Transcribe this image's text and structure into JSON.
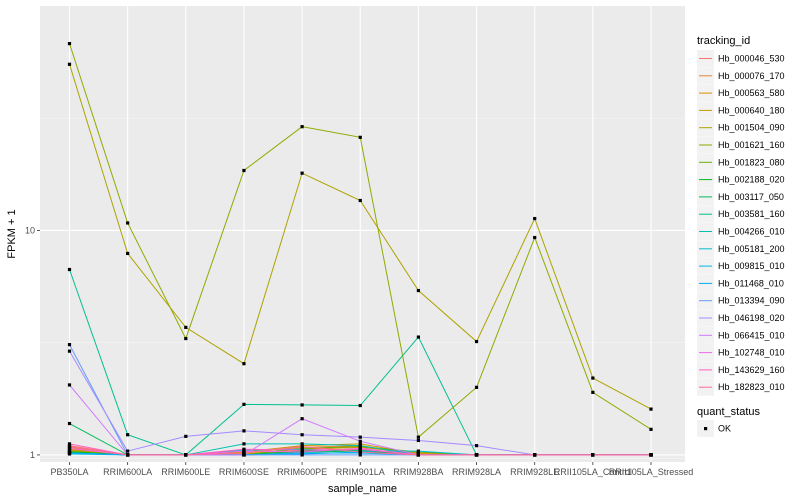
{
  "chart_data": {
    "type": "line",
    "ylabel": "FPKM + 1",
    "xlabel": "sample_name",
    "y_scale": "log10",
    "ylim": [
      0.93,
      100
    ],
    "y_ticks": [
      {
        "value": 1,
        "label": "1"
      },
      {
        "value": 10,
        "label": "10"
      }
    ],
    "grid": true,
    "legend_position": "right",
    "categories": [
      "PB350LA",
      "RRIM600LA",
      "RRIM600LE",
      "RRIM600SE",
      "RRIM600PE",
      "RRIM901LA",
      "RRIM928BA",
      "RRIM928LA",
      "RRIM928LE",
      "RRII105LA_Control",
      "RRII105LA_Stressed"
    ],
    "legend_color_title": "tracking_id",
    "legend_shape_title": "quant_status",
    "legend_shape_entries": [
      "OK"
    ],
    "series": [
      {
        "name": "Hb_000046_530",
        "color": "#F8766D",
        "values": [
          1.1,
          1.0,
          1.0,
          1.0,
          1.05,
          1.05,
          1.0,
          1.0,
          1.0,
          1.0,
          1.0
        ]
      },
      {
        "name": "Hb_000076_170",
        "color": "#EC8239",
        "values": [
          1.08,
          1.0,
          1.0,
          1.02,
          1.08,
          1.1,
          1.0,
          1.0,
          1.0,
          1.0,
          1.0
        ]
      },
      {
        "name": "Hb_000563_580",
        "color": "#DB8E00",
        "values": [
          1.06,
          1.0,
          1.0,
          1.01,
          1.06,
          1.08,
          1.02,
          1.0,
          1.0,
          1.0,
          1.0
        ]
      },
      {
        "name": "Hb_000640_180",
        "color": "#C79800",
        "values": [
          1.05,
          1.0,
          1.0,
          1.03,
          1.1,
          1.12,
          1.01,
          1.0,
          1.0,
          1.0,
          1.0
        ]
      },
      {
        "name": "Hb_001504_090",
        "color": "#AEA200",
        "values": [
          55,
          7.9,
          3.7,
          2.55,
          18,
          13.6,
          5.4,
          3.2,
          11.3,
          2.2,
          1.6
        ]
      },
      {
        "name": "Hb_001621_160",
        "color": "#8FAA00",
        "values": [
          68,
          10.8,
          3.3,
          18.5,
          29,
          26,
          1.2,
          2.0,
          9.3,
          1.9,
          1.3
        ]
      },
      {
        "name": "Hb_001823_080",
        "color": "#64B200",
        "values": [
          1.04,
          1.0,
          1.0,
          1.0,
          1.07,
          1.09,
          1.03,
          1.0,
          1.0,
          1.0,
          1.0
        ]
      },
      {
        "name": "Hb_002188_020",
        "color": "#00B81B",
        "values": [
          1.03,
          1.0,
          1.0,
          1.0,
          1.04,
          1.05,
          1.0,
          1.0,
          1.0,
          1.0,
          1.0
        ]
      },
      {
        "name": "Hb_003117_050",
        "color": "#00BD5C",
        "values": [
          1.38,
          1.0,
          1.0,
          1.0,
          1.03,
          1.04,
          1.0,
          1.0,
          1.0,
          1.0,
          1.0
        ]
      },
      {
        "name": "Hb_003581_160",
        "color": "#00C08E",
        "values": [
          6.7,
          1.23,
          1.0,
          1.68,
          1.67,
          1.66,
          3.35,
          1.0,
          1.0,
          1.0,
          1.0
        ]
      },
      {
        "name": "Hb_004266_010",
        "color": "#00C1B2",
        "values": [
          1.02,
          1.0,
          1.0,
          1.12,
          1.12,
          1.1,
          1.0,
          1.0,
          1.0,
          1.0,
          1.0
        ]
      },
      {
        "name": "Hb_005181_200",
        "color": "#00BFD0",
        "values": [
          1.02,
          1.0,
          1.0,
          1.05,
          1.06,
          1.04,
          1.04,
          1.0,
          1.0,
          1.0,
          1.0
        ]
      },
      {
        "name": "Hb_009815_010",
        "color": "#00B8E5",
        "values": [
          1.01,
          1.0,
          1.0,
          1.0,
          1.02,
          1.02,
          1.0,
          1.0,
          1.0,
          1.0,
          1.0
        ]
      },
      {
        "name": "Hb_011468_010",
        "color": "#00ADF6",
        "values": [
          1.02,
          1.0,
          1.0,
          1.0,
          1.01,
          1.03,
          1.0,
          1.0,
          1.0,
          1.0,
          1.0
        ]
      },
      {
        "name": "Hb_013394_090",
        "color": "#619CFF",
        "values": [
          3.1,
          1.0,
          1.0,
          1.0,
          1.0,
          1.0,
          1.0,
          1.0,
          1.0,
          1.0,
          1.0
        ]
      },
      {
        "name": "Hb_046198_020",
        "color": "#A58AFF",
        "values": [
          2.9,
          1.04,
          1.21,
          1.28,
          1.23,
          1.2,
          1.16,
          1.1,
          1.0,
          1.0,
          1.0
        ]
      },
      {
        "name": "Hb_066415_010",
        "color": "#D277FF",
        "values": [
          2.05,
          1.0,
          1.0,
          1.0,
          1.45,
          1.15,
          1.0,
          1.0,
          1.0,
          1.0,
          1.0
        ]
      },
      {
        "name": "Hb_102748_010",
        "color": "#EF67EB",
        "values": [
          1.07,
          1.0,
          1.0,
          1.04,
          1.03,
          1.07,
          1.0,
          1.0,
          1.0,
          1.0,
          1.0
        ]
      },
      {
        "name": "Hb_143629_160",
        "color": "#FF61C3",
        "values": [
          1.12,
          1.0,
          1.0,
          1.06,
          1.05,
          1.06,
          1.0,
          1.0,
          1.0,
          1.0,
          1.0
        ]
      },
      {
        "name": "Hb_182823_010",
        "color": "#FF6C91",
        "values": [
          1.09,
          1.0,
          1.0,
          1.02,
          1.09,
          1.03,
          1.0,
          1.0,
          1.0,
          1.0,
          1.0
        ]
      }
    ]
  }
}
